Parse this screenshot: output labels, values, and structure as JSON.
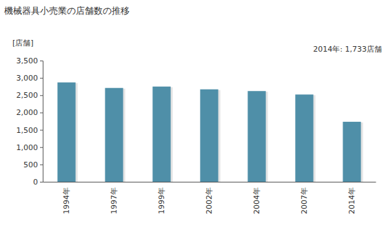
{
  "chart_data": {
    "type": "bar",
    "title": "機械器具小売業の店舗数の推移",
    "y_label": "[店舗]",
    "annotation": "2014年: 1,733店舗",
    "categories": [
      "1994年",
      "1997年",
      "1999年",
      "2002年",
      "2004年",
      "2007年",
      "2014年"
    ],
    "values": [
      2870,
      2710,
      2750,
      2670,
      2620,
      2520,
      1733
    ],
    "color": "#4f8fa8",
    "ylim": [
      0,
      3500
    ],
    "yticks": [
      0,
      500,
      {
        "value": 1000,
        "label": "1,000"
      },
      {
        "value": 1500,
        "label": "1,500"
      },
      {
        "value": 2000,
        "label": "2,000"
      },
      {
        "value": 2500,
        "label": "2,500"
      },
      {
        "value": 3000,
        "label": "3,000"
      },
      {
        "value": 3500,
        "label": "3,500"
      }
    ],
    "grid": false
  }
}
